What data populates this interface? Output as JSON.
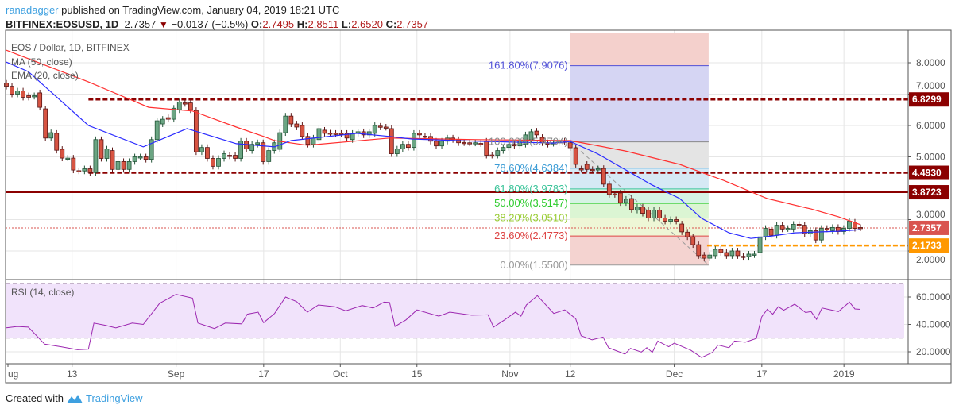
{
  "header": {
    "author": "ranadagger",
    "published": "published on TradingView.com, January 04, 2019 18:21 UTC",
    "symbol": "BITFINEX:EOSUSD, 1D",
    "last": "2.7357",
    "change": "−0.0137 (−0.5%)",
    "open_label": "O:",
    "open": "2.7495",
    "high_label": "H:",
    "high": "2.8511",
    "low_label": "L:",
    "low": "2.6520",
    "close_label": "C:",
    "close": "2.7357",
    "direction_icon": "triangle-down-icon"
  },
  "legend": {
    "title": "EOS / Dollar, 1D, BITFINEX",
    "ma": "MA (50, close)",
    "ema": "EMA (20, close)",
    "rsi": "RSI (14, close)"
  },
  "footer": {
    "created_with": "Created with",
    "brand": "TradingView"
  },
  "colors": {
    "up": "#6ba583",
    "down": "#d75442",
    "ma": "#ff3030",
    "ema": "#2a2aff",
    "rsi": "#9c27b0",
    "level": "#8b0000",
    "support": "#ff9800",
    "price": "#d9534f"
  },
  "chart_data": {
    "type": "candlestick",
    "start_date": "2018-08-01",
    "end_date": "2019-01-04",
    "price_axis": {
      "range": [
        1.3,
        8.9
      ],
      "ticks": [
        "8.0000",
        "7.0000",
        "6.0000",
        "5.0000",
        "3.0000",
        "2.0000"
      ],
      "tick_values": [
        8,
        7,
        6,
        5,
        3,
        2
      ]
    },
    "rsi_axis": {
      "ticks": [
        "60.0000",
        "40.0000",
        "20.0000"
      ],
      "tick_values": [
        60,
        40,
        20
      ],
      "band": [
        30,
        70
      ]
    },
    "x_ticks": [
      {
        "label": "ug",
        "date": "2018-08-01"
      },
      {
        "label": "13",
        "date": "2018-08-13"
      },
      {
        "label": "Sep",
        "date": "2018-09-01"
      },
      {
        "label": "17",
        "date": "2018-09-17"
      },
      {
        "label": "Oct",
        "date": "2018-10-01"
      },
      {
        "label": "15",
        "date": "2018-10-15"
      },
      {
        "label": "Nov",
        "date": "2018-11-01"
      },
      {
        "label": "12",
        "date": "2018-11-12"
      },
      {
        "label": "Dec",
        "date": "2018-12-01"
      },
      {
        "label": "17",
        "date": "2018-12-17"
      },
      {
        "label": "2019",
        "date": "2019-01-01"
      }
    ],
    "candles_oc": [
      [
        7.35,
        7.25
      ],
      [
        7.25,
        7.0
      ],
      [
        7.0,
        7.1
      ],
      [
        7.1,
        6.9
      ],
      [
        6.95,
        6.9
      ],
      [
        6.93,
        6.95
      ],
      [
        7.04,
        6.58
      ],
      [
        6.53,
        5.6
      ],
      [
        5.6,
        5.77
      ],
      [
        5.75,
        5.21
      ],
      [
        5.24,
        4.96
      ],
      [
        4.96,
        4.96
      ],
      [
        4.96,
        4.58
      ],
      [
        4.56,
        4.55
      ],
      [
        4.55,
        4.62
      ],
      [
        4.62,
        4.5
      ],
      [
        4.5,
        5.55
      ],
      [
        5.55,
        4.95
      ],
      [
        4.95,
        5.25
      ],
      [
        5.2,
        4.6
      ],
      [
        4.6,
        4.85
      ],
      [
        4.85,
        4.6
      ],
      [
        4.6,
        4.85
      ],
      [
        4.85,
        5.0
      ],
      [
        5.0,
        5.0
      ],
      [
        5.0,
        4.92
      ],
      [
        4.92,
        5.55
      ],
      [
        5.55,
        6.15
      ],
      [
        6.05,
        6.2
      ],
      [
        6.25,
        6.2
      ],
      [
        6.2,
        6.55
      ],
      [
        6.5,
        6.75
      ],
      [
        6.72,
        6.7
      ],
      [
        6.72,
        6.5
      ],
      [
        6.48,
        5.16
      ],
      [
        5.16,
        5.3
      ],
      [
        5.3,
        4.95
      ],
      [
        4.95,
        4.7
      ],
      [
        4.7,
        4.95
      ],
      [
        4.95,
        5.1
      ],
      [
        5.05,
        5.03
      ],
      [
        5.05,
        4.95
      ],
      [
        4.95,
        5.5
      ],
      [
        5.5,
        5.25
      ],
      [
        5.2,
        5.4
      ],
      [
        5.4,
        5.45
      ],
      [
        5.45,
        4.85
      ],
      [
        4.85,
        5.2
      ],
      [
        5.2,
        5.45
      ],
      [
        5.24,
        5.77
      ],
      [
        5.77,
        6.3
      ],
      [
        6.3,
        6.05
      ],
      [
        6.05,
        5.95
      ],
      [
        6.0,
        5.65
      ],
      [
        5.65,
        5.4
      ],
      [
        5.4,
        5.6
      ],
      [
        5.55,
        5.9
      ],
      [
        5.85,
        5.75
      ],
      [
        5.76,
        5.74
      ],
      [
        5.75,
        5.74
      ],
      [
        5.75,
        5.73
      ],
      [
        5.75,
        5.6
      ],
      [
        5.55,
        5.75
      ],
      [
        5.75,
        5.8
      ],
      [
        5.8,
        5.7
      ],
      [
        5.7,
        5.8
      ],
      [
        5.75,
        6.0
      ],
      [
        5.98,
        5.95
      ],
      [
        5.95,
        5.94
      ],
      [
        5.9,
        5.1
      ],
      [
        5.1,
        5.25
      ],
      [
        5.25,
        5.4
      ],
      [
        5.4,
        5.3
      ],
      [
        5.3,
        5.75
      ],
      [
        5.75,
        5.7
      ],
      [
        5.66,
        5.65
      ],
      [
        5.65,
        5.5
      ],
      [
        5.5,
        5.35
      ],
      [
        5.35,
        5.5
      ],
      [
        5.5,
        5.6
      ],
      [
        5.6,
        5.55
      ],
      [
        5.55,
        5.45
      ],
      [
        5.46,
        5.45
      ],
      [
        5.45,
        5.44
      ],
      [
        5.44,
        5.45
      ],
      [
        5.43,
        5.42
      ],
      [
        5.5,
        5.05
      ],
      [
        5.06,
        5.05
      ],
      [
        5.05,
        5.2
      ],
      [
        5.2,
        5.3
      ],
      [
        5.3,
        5.4
      ],
      [
        5.4,
        5.35
      ],
      [
        5.35,
        5.5
      ],
      [
        5.4,
        5.7
      ],
      [
        5.55,
        5.8
      ],
      [
        5.82,
        5.7
      ],
      [
        5.62,
        5.45
      ],
      [
        5.45,
        5.4
      ],
      [
        5.43,
        5.45
      ],
      [
        5.45,
        5.5
      ],
      [
        5.5,
        5.48
      ],
      [
        5.45,
        5.29
      ],
      [
        5.29,
        4.76
      ],
      [
        4.62,
        4.6
      ],
      [
        4.76,
        4.6
      ],
      [
        4.6,
        4.59
      ],
      [
        4.6,
        4.62
      ],
      [
        4.63,
        4.13
      ],
      [
        4.13,
        3.8
      ],
      [
        3.82,
        3.8
      ],
      [
        3.85,
        3.54
      ],
      [
        3.54,
        3.65
      ],
      [
        3.67,
        3.32
      ],
      [
        3.3,
        3.4
      ],
      [
        3.4,
        3.2
      ],
      [
        3.3,
        3.05
      ],
      [
        3.05,
        3.3
      ],
      [
        3.3,
        3.05
      ],
      [
        3.05,
        2.95
      ],
      [
        2.95,
        3.0
      ],
      [
        3.0,
        2.95
      ],
      [
        2.86,
        2.61
      ],
      [
        2.6,
        2.45
      ],
      [
        2.45,
        2.2
      ],
      [
        2.2,
        1.85
      ],
      [
        1.87,
        1.77
      ],
      [
        1.77,
        1.87
      ],
      [
        1.85,
        2.05
      ],
      [
        2.05,
        1.95
      ],
      [
        1.95,
        1.85
      ],
      [
        1.85,
        2.0
      ],
      [
        2.0,
        1.85
      ],
      [
        1.83,
        1.82
      ],
      [
        1.82,
        1.9
      ],
      [
        1.88,
        1.9
      ],
      [
        1.95,
        2.45
      ],
      [
        2.45,
        2.72
      ],
      [
        2.7,
        2.5
      ],
      [
        2.5,
        2.82
      ],
      [
        2.82,
        2.7
      ],
      [
        2.71,
        2.72
      ],
      [
        2.7,
        2.85
      ],
      [
        2.85,
        2.82
      ],
      [
        2.82,
        2.55
      ],
      [
        2.55,
        2.65
      ],
      [
        2.65,
        2.35
      ],
      [
        2.35,
        2.72
      ],
      [
        2.72,
        2.7
      ],
      [
        2.65,
        2.75
      ],
      [
        2.75,
        2.62
      ],
      [
        2.62,
        2.72
      ],
      [
        2.72,
        2.95
      ],
      [
        2.92,
        2.72
      ],
      [
        2.7495,
        2.7357
      ]
    ],
    "ma50": [
      [
        "2018-08-01",
        8.4
      ],
      [
        "2018-08-16",
        7.39
      ],
      [
        "2018-08-27",
        6.58
      ],
      [
        "2018-09-04",
        6.46
      ],
      [
        "2018-09-12",
        5.95
      ],
      [
        "2018-09-17",
        5.65
      ],
      [
        "2018-09-19",
        5.52
      ],
      [
        "2018-09-25",
        5.37
      ],
      [
        "2018-10-10",
        5.6
      ],
      [
        "2018-10-26",
        5.55
      ],
      [
        "2018-11-12",
        5.52
      ],
      [
        "2018-11-22",
        5.19
      ],
      [
        "2018-12-02",
        4.76
      ],
      [
        "2018-12-10",
        4.25
      ],
      [
        "2018-12-18",
        3.67
      ],
      [
        "2018-12-26",
        3.34
      ],
      [
        "2018-12-31",
        3.09
      ],
      [
        "2019-01-04",
        2.84
      ]
    ],
    "ema20": [
      [
        "2018-08-01",
        8.02
      ],
      [
        "2018-08-05",
        7.72
      ],
      [
        "2018-08-16",
        6.0
      ],
      [
        "2018-08-26",
        5.32
      ],
      [
        "2018-09-03",
        5.9
      ],
      [
        "2018-09-12",
        5.42
      ],
      [
        "2018-09-19",
        5.32
      ],
      [
        "2018-09-22",
        5.52
      ],
      [
        "2018-10-04",
        5.75
      ],
      [
        "2018-10-10",
        5.65
      ],
      [
        "2018-10-14",
        5.57
      ],
      [
        "2018-10-26",
        5.5
      ],
      [
        "2018-11-09",
        5.44
      ],
      [
        "2018-11-12",
        5.49
      ],
      [
        "2018-11-17",
        5.1
      ],
      [
        "2018-11-27",
        4.1
      ],
      [
        "2018-12-02",
        3.67
      ],
      [
        "2018-12-06",
        3.04
      ],
      [
        "2018-12-11",
        2.58
      ],
      [
        "2018-12-15",
        2.4
      ],
      [
        "2018-12-19",
        2.48
      ],
      [
        "2018-12-23",
        2.58
      ],
      [
        "2018-12-31",
        2.63
      ],
      [
        "2019-01-04",
        2.68
      ]
    ],
    "rsi": [
      [
        "2018-08-01",
        37.5
      ],
      [
        "2018-08-03",
        38.5
      ],
      [
        "2018-08-05",
        38
      ],
      [
        "2018-08-08",
        25.6
      ],
      [
        "2018-08-11",
        23.7
      ],
      [
        "2018-08-14",
        21.5
      ],
      [
        "2018-08-16",
        22
      ],
      [
        "2018-08-17",
        41
      ],
      [
        "2018-08-19",
        39.4
      ],
      [
        "2018-08-21",
        37.5
      ],
      [
        "2018-08-24",
        41
      ],
      [
        "2018-08-26",
        40
      ],
      [
        "2018-08-29",
        55.4
      ],
      [
        "2018-09-01",
        62
      ],
      [
        "2018-09-04",
        59.2
      ],
      [
        "2018-09-05",
        41
      ],
      [
        "2018-09-08",
        37
      ],
      [
        "2018-09-10",
        41
      ],
      [
        "2018-09-13",
        40.4
      ],
      [
        "2018-09-14",
        47.5
      ],
      [
        "2018-09-16",
        49
      ],
      [
        "2018-09-17",
        41.3
      ],
      [
        "2018-09-19",
        48
      ],
      [
        "2018-09-21",
        60
      ],
      [
        "2018-09-23",
        56.7
      ],
      [
        "2018-09-25",
        49
      ],
      [
        "2018-09-27",
        54.2
      ],
      [
        "2018-09-30",
        52.9
      ],
      [
        "2018-10-02",
        50
      ],
      [
        "2018-10-05",
        53.8
      ],
      [
        "2018-10-07",
        52
      ],
      [
        "2018-10-09",
        56.3
      ],
      [
        "2018-10-10",
        56
      ],
      [
        "2018-10-11",
        38.5
      ],
      [
        "2018-10-13",
        43.3
      ],
      [
        "2018-10-15",
        50.6
      ],
      [
        "2018-10-19",
        46
      ],
      [
        "2018-10-21",
        49
      ],
      [
        "2018-10-25",
        46.7
      ],
      [
        "2018-10-28",
        47
      ],
      [
        "2018-10-29",
        38
      ],
      [
        "2018-10-31",
        43.3
      ],
      [
        "2018-11-02",
        49
      ],
      [
        "2018-11-03",
        46
      ],
      [
        "2018-11-04",
        54.2
      ],
      [
        "2018-11-06",
        61
      ],
      [
        "2018-11-09",
        48
      ],
      [
        "2018-11-11",
        50.6
      ],
      [
        "2018-11-13",
        44.2
      ],
      [
        "2018-11-14",
        31.7
      ],
      [
        "2018-11-16",
        28.8
      ],
      [
        "2018-11-18",
        30.8
      ],
      [
        "2018-11-19",
        23
      ],
      [
        "2018-11-22",
        18.3
      ],
      [
        "2018-11-23",
        22.5
      ],
      [
        "2018-11-25",
        19.8
      ],
      [
        "2018-11-26",
        23
      ],
      [
        "2018-11-27",
        19.6
      ],
      [
        "2018-11-28",
        27.9
      ],
      [
        "2018-11-30",
        23.7
      ],
      [
        "2018-12-01",
        26.3
      ],
      [
        "2018-12-04",
        21.2
      ],
      [
        "2018-12-06",
        15.8
      ],
      [
        "2018-12-08",
        19.6
      ],
      [
        "2018-12-09",
        25
      ],
      [
        "2018-12-11",
        23
      ],
      [
        "2018-12-12",
        27.9
      ],
      [
        "2018-12-14",
        27
      ],
      [
        "2018-12-16",
        29.8
      ],
      [
        "2018-12-17",
        45.6
      ],
      [
        "2018-12-18",
        51
      ],
      [
        "2018-12-19",
        47.5
      ],
      [
        "2018-12-20",
        52.9
      ],
      [
        "2018-12-21",
        50.4
      ],
      [
        "2018-12-23",
        54.8
      ],
      [
        "2018-12-25",
        48.7
      ],
      [
        "2018-12-26",
        49.4
      ],
      [
        "2018-12-27",
        43.7
      ],
      [
        "2018-12-28",
        52
      ],
      [
        "2018-12-31",
        49.4
      ],
      [
        "2019-01-02",
        56.3
      ],
      [
        "2019-01-03",
        51.3
      ],
      [
        "2019-01-04",
        51
      ]
    ],
    "levels": [
      {
        "label": "6.8299",
        "value": 6.8299,
        "style": "dashed",
        "from": "2018-08-16",
        "color": "#8b0000"
      },
      {
        "label": "4.4930",
        "value": 4.493,
        "style": "dashed",
        "from": "2018-08-16",
        "color": "#8b0000"
      },
      {
        "label": "3.8723",
        "value": 3.8723,
        "style": "solid",
        "from": "2018-07-31",
        "color": "#8b0000"
      },
      {
        "label": "2.7357",
        "value": 2.7357,
        "style": "dotted",
        "from": "2018-07-31",
        "color": "#d9534f"
      },
      {
        "label": "2.1733",
        "value": 2.1733,
        "style": "dashed",
        "from": "2018-12-07",
        "color": "#ff9800"
      }
    ],
    "fib": {
      "from": "2018-11-12",
      "to": "2018-12-07",
      "levels": [
        {
          "label": "161.80%(7.9076)",
          "value": 7.9076,
          "color": "#5050d8",
          "fill": "#d5d5f3"
        },
        {
          "label": "100.00%(5.4794)",
          "value": 5.4794,
          "color": "#888888",
          "fill": "#e4e4e4"
        },
        {
          "label": "78.60%(4.6384)",
          "value": 4.6384,
          "color": "#3a9bd5",
          "fill": "#d6e9f5"
        },
        {
          "label": "61.80%(3.9783)",
          "value": 3.9783,
          "color": "#3cc49a",
          "fill": "#d6f3e4"
        },
        {
          "label": "50.00%(3.5147)",
          "value": 3.5147,
          "color": "#2ecc2e",
          "fill": "#dbf5d3"
        },
        {
          "label": "38.20%(3.0510)",
          "value": 3.051,
          "color": "#99cc33",
          "fill": "#eef6d6"
        },
        {
          "label": "23.60%(2.4773)",
          "value": 2.4773,
          "color": "#dd4444",
          "fill": "#f4d3d0"
        },
        {
          "label": "0.00%(1.5500)",
          "value": 1.55,
          "color": "#999999",
          "fill": null
        }
      ],
      "range_fill": "#f4d0cc"
    }
  }
}
